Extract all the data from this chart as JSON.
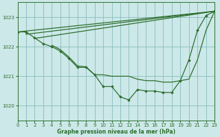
{
  "title": "Graphe pression niveau de la mer (hPa)",
  "background_color": "#cce8e8",
  "grid_color": "#88bbbb",
  "line_color": "#2d6e2d",
  "xlim": [
    0,
    23
  ],
  "ylim": [
    1019.5,
    1023.5
  ],
  "yticks": [
    1020,
    1021,
    1022,
    1023
  ],
  "xticks": [
    0,
    1,
    2,
    3,
    4,
    5,
    6,
    7,
    8,
    9,
    10,
    11,
    12,
    13,
    14,
    15,
    16,
    17,
    18,
    19,
    20,
    21,
    22,
    23
  ],
  "series": [
    {
      "x": [
        0,
        1,
        2,
        3,
        4,
        5,
        6,
        7,
        8,
        9,
        10,
        11,
        12,
        13,
        14,
        15,
        16,
        17,
        18,
        19,
        20,
        21,
        22,
        23
      ],
      "y": [
        1022.5,
        1022.5,
        1022.3,
        1022.1,
        1022.0,
        1021.85,
        1021.6,
        1021.3,
        1021.3,
        1021.05,
        1020.65,
        1020.65,
        1020.3,
        1020.2,
        1020.55,
        1020.5,
        1020.5,
        1020.45,
        1020.45,
        1020.85,
        1021.55,
        1022.55,
        1023.05,
        1023.2
      ],
      "markers": true,
      "lw": 0.9
    },
    {
      "x": [
        0,
        23
      ],
      "y": [
        1022.5,
        1023.2
      ],
      "markers": false,
      "lw": 0.9
    },
    {
      "x": [
        1,
        23
      ],
      "y": [
        1022.42,
        1023.2
      ],
      "markers": false,
      "lw": 0.9
    },
    {
      "x": [
        2,
        23
      ],
      "y": [
        1022.28,
        1023.2
      ],
      "markers": false,
      "lw": 0.9
    },
    {
      "x": [
        4,
        5,
        6,
        7,
        8,
        9,
        10,
        11,
        12,
        13,
        14,
        15,
        16,
        17,
        18,
        19,
        20,
        21,
        22,
        23
      ],
      "y": [
        1022.05,
        1021.9,
        1021.65,
        1021.35,
        1021.32,
        1021.05,
        1021.05,
        1021.0,
        1021.0,
        1021.0,
        1020.9,
        1020.85,
        1020.85,
        1020.8,
        1020.8,
        1020.85,
        1020.9,
        1021.55,
        1022.55,
        1023.2
      ],
      "markers": false,
      "lw": 0.9
    }
  ]
}
